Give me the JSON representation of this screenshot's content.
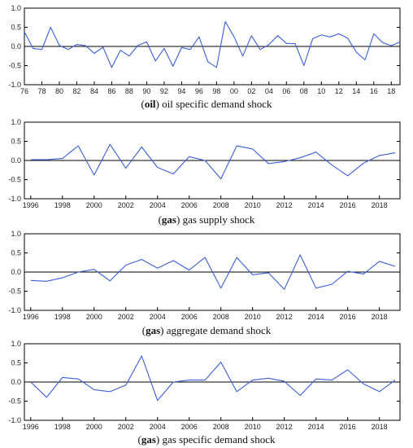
{
  "colors": {
    "line": "#3a5fd9",
    "zero": "#000000",
    "frame": "#000000",
    "axis_text": "#222222"
  },
  "chart_data": [
    {
      "type": "line",
      "caption_bold": "oil",
      "caption_rest": "oil specific demand shock",
      "xlim": [
        1976,
        2019
      ],
      "ylim": [
        -1.0,
        1.0
      ],
      "yticks": [
        "1.0",
        "0.5",
        "0.0",
        "-0.5",
        "-1.0"
      ],
      "xtick_values": [
        1976,
        1978,
        1980,
        1982,
        1984,
        1986,
        1988,
        1990,
        1992,
        1994,
        1996,
        1998,
        2000,
        2002,
        2004,
        2006,
        2008,
        2010,
        2012,
        2014,
        2016,
        2018
      ],
      "xticks": [
        "76",
        "78",
        "80",
        "82",
        "84",
        "86",
        "88",
        "90",
        "92",
        "94",
        "96",
        "98",
        "00",
        "02",
        "04",
        "06",
        "08",
        "10",
        "12",
        "14",
        "16",
        "18"
      ],
      "series": [
        {
          "x": [
            1976,
            1977,
            1978,
            1979,
            1980,
            1981,
            1982,
            1983,
            1984,
            1985,
            1986,
            1987,
            1988,
            1989,
            1990,
            1991,
            1992,
            1993,
            1994,
            1995,
            1996,
            1997,
            1998,
            1999,
            2000,
            2001,
            2002,
            2003,
            2004,
            2005,
            2006,
            2007,
            2008,
            2009,
            2010,
            2011,
            2012,
            2013,
            2014,
            2015,
            2016,
            2017,
            2018,
            2019
          ],
          "values": [
            0.38,
            -0.05,
            -0.08,
            0.5,
            0.03,
            -0.08,
            0.05,
            0.02,
            -0.18,
            -0.02,
            -0.55,
            -0.1,
            -0.25,
            0.03,
            0.12,
            -0.38,
            -0.05,
            -0.52,
            -0.03,
            -0.08,
            0.25,
            -0.4,
            -0.55,
            0.65,
            0.25,
            -0.25,
            0.28,
            -0.08,
            0.05,
            0.28,
            0.08,
            0.07,
            -0.5,
            0.2,
            0.3,
            0.25,
            0.33,
            0.22,
            -0.15,
            -0.35,
            0.33,
            0.1,
            0.02,
            0.12
          ]
        }
      ]
    },
    {
      "type": "line",
      "caption_bold": "gas",
      "caption_rest": "gas supply shock",
      "xlim": [
        1995.6,
        2019.3
      ],
      "ylim": [
        -1.0,
        1.0
      ],
      "yticks": [
        "1.0",
        "0.5",
        "0.0",
        "-0.5",
        "-1.0"
      ],
      "xtick_values": [
        1996,
        1998,
        2000,
        2002,
        2004,
        2006,
        2008,
        2010,
        2012,
        2014,
        2016,
        2018
      ],
      "xticks": [
        "1996",
        "1998",
        "2000",
        "2002",
        "2004",
        "2006",
        "2008",
        "2010",
        "2012",
        "2014",
        "2016",
        "2018"
      ],
      "series": [
        {
          "x": [
            1996,
            1997,
            1998,
            1999,
            2000,
            2001,
            2002,
            2003,
            2004,
            2005,
            2006,
            2007,
            2008,
            2009,
            2010,
            2011,
            2012,
            2013,
            2014,
            2015,
            2016,
            2017,
            2018,
            2019
          ],
          "values": [
            0.02,
            0.02,
            0.05,
            0.38,
            -0.38,
            0.42,
            -0.2,
            0.35,
            -0.18,
            -0.35,
            0.1,
            0.0,
            -0.48,
            0.38,
            0.3,
            -0.08,
            -0.03,
            0.07,
            0.22,
            -0.12,
            -0.4,
            -0.07,
            0.13,
            0.2
          ]
        }
      ]
    },
    {
      "type": "line",
      "caption_bold": "gas",
      "caption_rest": "aggregate demand shock",
      "xlim": [
        1995.6,
        2019.3
      ],
      "ylim": [
        -1.0,
        1.0
      ],
      "yticks": [
        "1.0",
        "0.5",
        "0.0",
        "-0.5",
        "-1.0"
      ],
      "xtick_values": [
        1996,
        1998,
        2000,
        2002,
        2004,
        2006,
        2008,
        2010,
        2012,
        2014,
        2016,
        2018
      ],
      "xticks": [
        "1996",
        "1998",
        "2000",
        "2002",
        "2004",
        "2006",
        "2008",
        "2010",
        "2012",
        "2014",
        "2016",
        "2018"
      ],
      "series": [
        {
          "x": [
            1996,
            1997,
            1998,
            1999,
            2000,
            2001,
            2002,
            2003,
            2004,
            2005,
            2006,
            2007,
            2008,
            2009,
            2010,
            2011,
            2012,
            2013,
            2014,
            2015,
            2016,
            2017,
            2018,
            2019
          ],
          "values": [
            -0.22,
            -0.24,
            -0.15,
            0.0,
            0.07,
            -0.23,
            0.18,
            0.33,
            0.1,
            0.3,
            0.05,
            0.38,
            -0.42,
            0.38,
            -0.07,
            -0.02,
            -0.45,
            0.45,
            -0.42,
            -0.32,
            0.02,
            -0.05,
            0.28,
            0.15
          ]
        }
      ]
    },
    {
      "type": "line",
      "caption_bold": "gas",
      "caption_rest": "gas specific demand shock",
      "xlim": [
        1995.6,
        2019.3
      ],
      "ylim": [
        -1.0,
        1.0
      ],
      "yticks": [
        "1.0",
        "0.5",
        "0.0",
        "-0.5",
        "-1.0"
      ],
      "xtick_values": [
        1996,
        1998,
        2000,
        2002,
        2004,
        2006,
        2008,
        2010,
        2012,
        2014,
        2016,
        2018
      ],
      "xticks": [
        "1996",
        "1998",
        "2000",
        "2002",
        "2004",
        "2006",
        "2008",
        "2010",
        "2012",
        "2014",
        "2016",
        "2018"
      ],
      "series": [
        {
          "x": [
            1996,
            1997,
            1998,
            1999,
            2000,
            2001,
            2002,
            2003,
            2004,
            2005,
            2006,
            2007,
            2008,
            2009,
            2010,
            2011,
            2012,
            2013,
            2014,
            2015,
            2016,
            2017,
            2018,
            2019
          ],
          "values": [
            0.0,
            -0.4,
            0.12,
            0.08,
            -0.2,
            -0.25,
            -0.08,
            0.68,
            -0.48,
            0.0,
            0.05,
            0.05,
            0.52,
            -0.25,
            0.05,
            0.1,
            0.02,
            -0.35,
            0.08,
            0.05,
            0.32,
            -0.05,
            -0.25,
            0.05
          ]
        }
      ]
    }
  ]
}
